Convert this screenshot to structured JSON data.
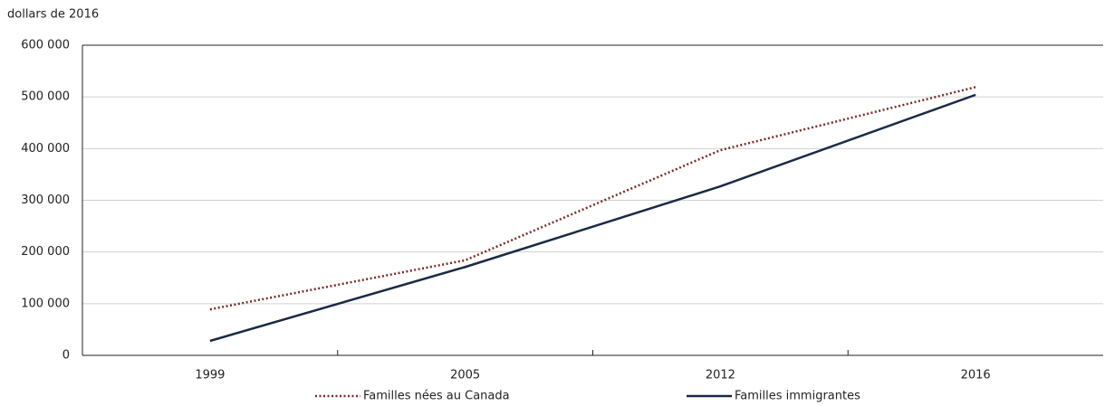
{
  "chart_data": {
    "type": "line",
    "y_label": "dollars de 2016",
    "categories": [
      "1999",
      "2005",
      "2012",
      "2016"
    ],
    "series": [
      {
        "name": "Familles nées au Canada",
        "color": "#7a2b2b",
        "dash": "dotted",
        "values": [
          89000,
          184000,
          397000,
          519000
        ]
      },
      {
        "name": "Familles immigrantes",
        "color": "#1b2a44",
        "dash": "solid",
        "values": [
          28000,
          171000,
          327000,
          504000
        ]
      }
    ],
    "ylim": [
      0,
      600000
    ],
    "yticks": [
      0,
      {
        "value": 100000,
        "label": "100 000"
      },
      {
        "value": 200000,
        "label": "200 000"
      },
      {
        "value": 300000,
        "label": "300 000"
      },
      {
        "value": 400000,
        "label": "400 000"
      },
      {
        "value": 500000,
        "label": "500 000"
      },
      {
        "value": 600000,
        "label": "600 000"
      }
    ],
    "grid": true,
    "legend": "bottom"
  }
}
